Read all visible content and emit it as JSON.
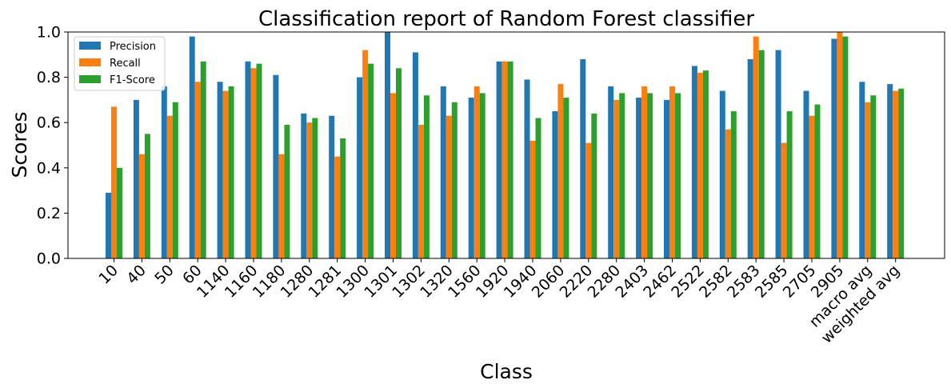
{
  "chart_data": {
    "type": "bar",
    "title": "Classification report of Random Forest classifier",
    "xlabel": "Class",
    "ylabel": "Scores",
    "ylim": [
      0,
      1.0
    ],
    "yticks": [
      "0.0",
      "0.2",
      "0.4",
      "0.6",
      "0.8",
      "1.0"
    ],
    "legend_position": "top-left",
    "grid": false,
    "categories": [
      "10",
      "40",
      "50",
      "60",
      "1140",
      "1160",
      "1180",
      "1280",
      "1281",
      "1300",
      "1301",
      "1302",
      "1320",
      "1560",
      "1920",
      "1940",
      "2060",
      "2220",
      "2280",
      "2403",
      "2462",
      "2522",
      "2582",
      "2583",
      "2585",
      "2705",
      "2905",
      "macro avg",
      "weighted avg"
    ],
    "series": [
      {
        "name": "Precision",
        "color": "#1f77b4",
        "values": [
          0.29,
          0.7,
          0.76,
          0.98,
          0.78,
          0.87,
          0.81,
          0.64,
          0.63,
          0.8,
          1.0,
          0.91,
          0.76,
          0.71,
          0.87,
          0.79,
          0.65,
          0.88,
          0.76,
          0.71,
          0.7,
          0.85,
          0.74,
          0.88,
          0.92,
          0.74,
          0.97,
          0.78,
          0.77
        ]
      },
      {
        "name": "Recall",
        "color": "#ff7f0e",
        "values": [
          0.67,
          0.46,
          0.63,
          0.78,
          0.74,
          0.84,
          0.46,
          0.6,
          0.45,
          0.92,
          0.73,
          0.59,
          0.63,
          0.76,
          0.87,
          0.52,
          0.77,
          0.51,
          0.7,
          0.76,
          0.76,
          0.82,
          0.57,
          0.98,
          0.51,
          0.63,
          1.0,
          0.69,
          0.74
        ]
      },
      {
        "name": "F1-Score",
        "color": "#2ca02c",
        "values": [
          0.4,
          0.55,
          0.69,
          0.87,
          0.76,
          0.86,
          0.59,
          0.62,
          0.53,
          0.86,
          0.84,
          0.72,
          0.69,
          0.73,
          0.87,
          0.62,
          0.71,
          0.64,
          0.73,
          0.73,
          0.73,
          0.83,
          0.65,
          0.92,
          0.65,
          0.68,
          0.98,
          0.72,
          0.75
        ]
      }
    ]
  }
}
